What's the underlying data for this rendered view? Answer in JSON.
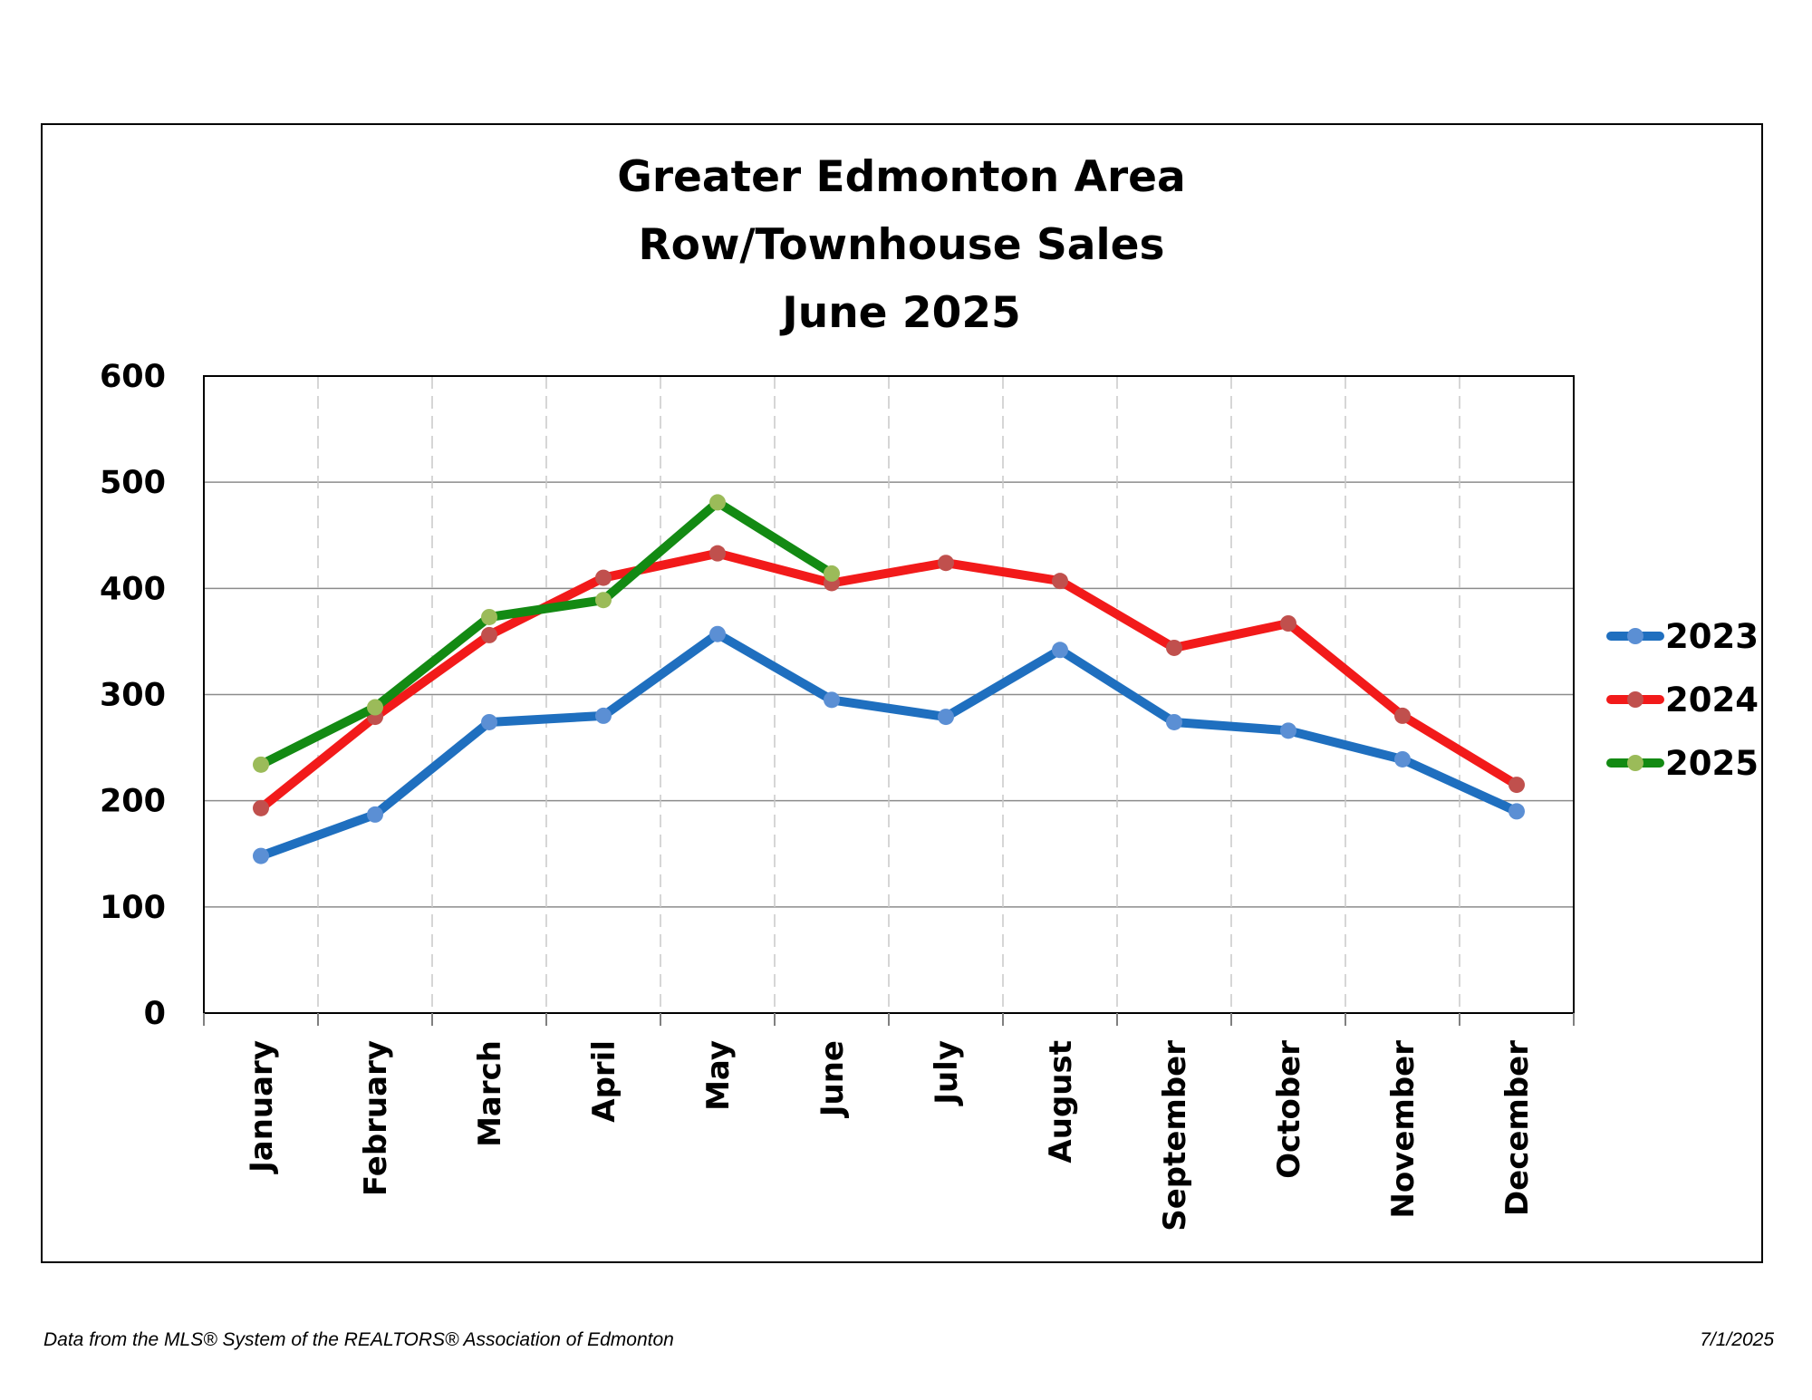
{
  "chart_data": {
    "type": "line",
    "title": [
      "Greater Edmonton Area",
      "Row/Townhouse Sales",
      "June 2025"
    ],
    "categories": [
      "January",
      "February",
      "March",
      "April",
      "May",
      "June",
      "July",
      "August",
      "September",
      "October",
      "November",
      "December"
    ],
    "ylim": [
      0,
      600
    ],
    "yticks": [
      "0",
      "100",
      "200",
      "300",
      "400",
      "500",
      "600"
    ],
    "xlabel": "",
    "ylabel": "",
    "grid": {
      "horizontal": true,
      "vertical": "dashed"
    },
    "legend_position": "right",
    "series": [
      {
        "name": "2023",
        "color": "#1f6fbf",
        "marker_color": "#5b8fd4",
        "values": [
          148,
          187,
          274,
          280,
          357,
          295,
          279,
          342,
          274,
          266,
          239,
          190
        ]
      },
      {
        "name": "2024",
        "color": "#f21a1a",
        "marker_color": "#c0504d",
        "values": [
          193,
          279,
          356,
          410,
          433,
          405,
          424,
          407,
          344,
          367,
          280,
          215
        ]
      },
      {
        "name": "2025",
        "color": "#138a13",
        "marker_color": "#9bbb59",
        "values": [
          234,
          288,
          373,
          389,
          481,
          414,
          null,
          null,
          null,
          null,
          null,
          null
        ]
      }
    ]
  },
  "footer": {
    "source": "Data from the MLS® System of the REALTORS® Association of Edmonton",
    "date": "7/1/2025"
  }
}
